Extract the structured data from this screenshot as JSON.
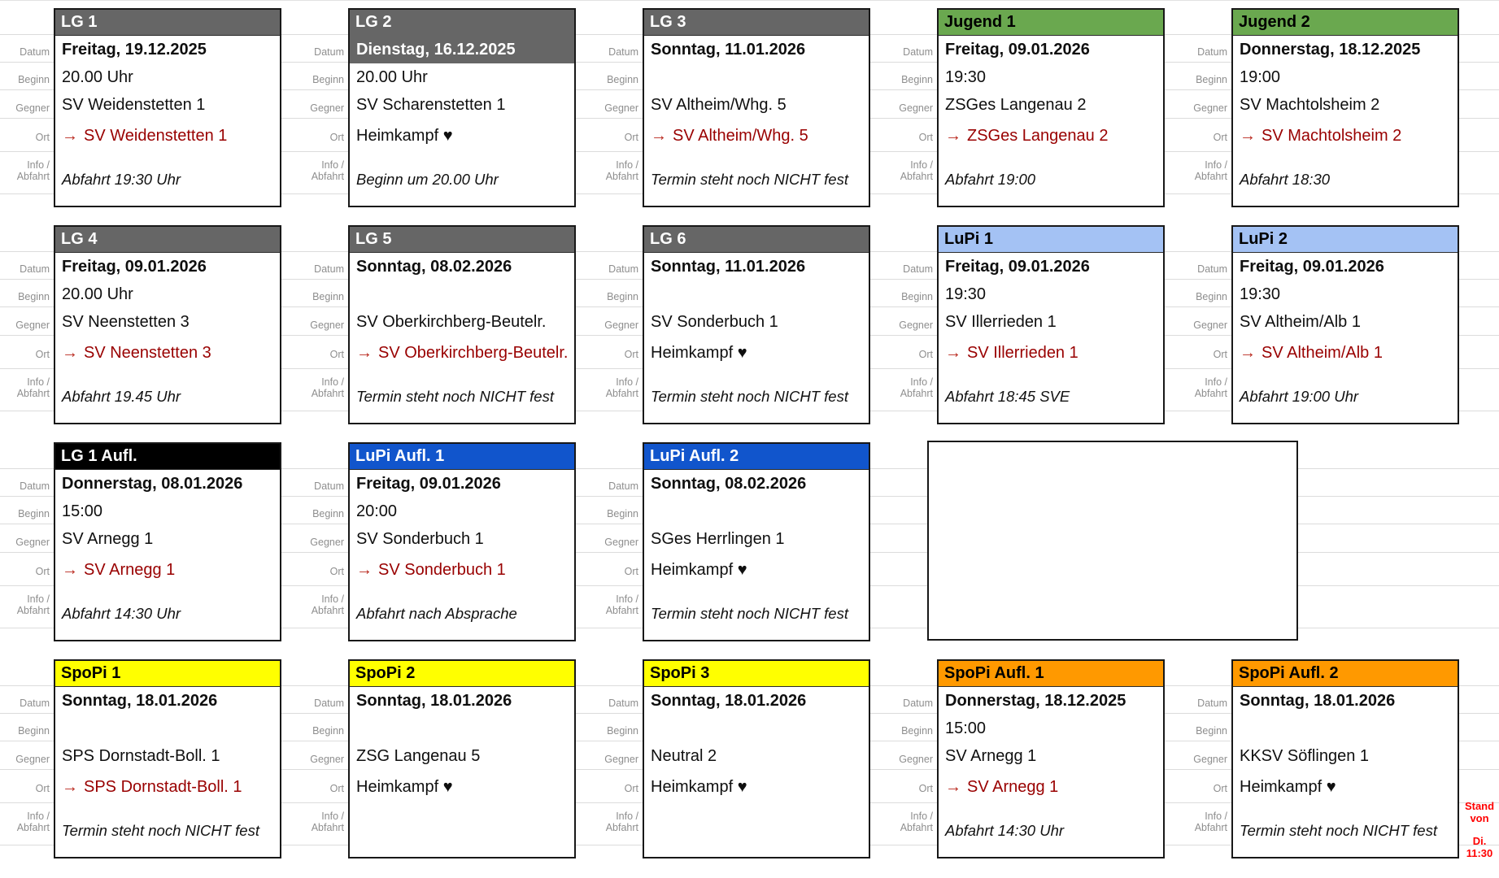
{
  "labels": {
    "datum": "Datum",
    "beginn": "Beginn",
    "gegner": "Gegner",
    "ort": "Ort",
    "info1": "Info /",
    "info2": "Abfahrt"
  },
  "glyphs": {
    "away_arrow": "→",
    "home_heart": "♥"
  },
  "colors": {
    "header_lg": "#666666",
    "header_jugend": "#6aa84f",
    "header_lupi": "#a4c2f4",
    "header_lupi_aufl": "#1155cc",
    "header_lg1_aufl": "#000000",
    "header_spopi": "#ffff00",
    "header_spopi_aufl": "#ff9900",
    "away_link": "#990000",
    "away_arrow": "#b9271c",
    "field_label": "#8e8e8e",
    "stand_note": "#ff0000",
    "date_highlight_bg": "#666666"
  },
  "cards": [
    {
      "title": "LG 1",
      "header_color": "#666666",
      "datum": "Freitag, 19.12.2025",
      "beginn": "20.00 Uhr",
      "gegner": "SV Weidenstetten 1",
      "ort": "SV Weidenstetten 1",
      "ort_type": "away",
      "info": "Abfahrt 19:30 Uhr"
    },
    {
      "title": "LG 2",
      "header_color": "#666666",
      "datum": "Dienstag, 16.12.2025",
      "date_highlighted": true,
      "beginn": "20.00 Uhr",
      "gegner": "SV Scharenstetten 1",
      "ort": "Heimkampf ♥",
      "ort_type": "home",
      "info": "Beginn um 20.00 Uhr"
    },
    {
      "title": "LG 3",
      "header_color": "#666666",
      "datum": "Sonntag, 11.01.2026",
      "beginn": "",
      "gegner": "SV Altheim/Whg. 5",
      "ort": "SV Altheim/Whg. 5",
      "ort_type": "away",
      "info": "Termin steht noch NICHT fest"
    },
    {
      "title": "Jugend 1",
      "header_color": "#6aa84f",
      "datum": "Freitag, 09.01.2026",
      "beginn": "19:30",
      "gegner": "ZSGes Langenau 2",
      "ort": "ZSGes Langenau 2",
      "ort_type": "away",
      "info": "Abfahrt 19:00"
    },
    {
      "title": "Jugend 2",
      "header_color": "#6aa84f",
      "datum": "Donnerstag, 18.12.2025",
      "beginn": "19:00",
      "gegner": "SV Machtolsheim 2",
      "ort": "SV Machtolsheim 2",
      "ort_type": "away",
      "info": "Abfahrt 18:30"
    },
    {
      "title": "LG 4",
      "header_color": "#666666",
      "datum": "Freitag, 09.01.2026",
      "beginn": "20.00 Uhr",
      "gegner": "SV Neenstetten 3",
      "ort": "SV Neenstetten 3",
      "ort_type": "away",
      "info": "Abfahrt 19.45 Uhr"
    },
    {
      "title": "LG 5",
      "header_color": "#666666",
      "datum": "Sonntag, 08.02.2026",
      "beginn": "",
      "gegner": "SV Oberkirchberg-Beutelr.",
      "ort": "SV Oberkirchberg-Beutelr.",
      "ort_type": "away",
      "info": "Termin steht noch NICHT fest"
    },
    {
      "title": "LG 6",
      "header_color": "#666666",
      "datum": "Sonntag, 11.01.2026",
      "beginn": "",
      "gegner": "SV Sonderbuch 1",
      "ort": "Heimkampf ♥",
      "ort_type": "home",
      "info": "Termin steht noch NICHT fest"
    },
    {
      "title": "LuPi 1",
      "header_color": "#a4c2f4",
      "datum": "Freitag, 09.01.2026",
      "beginn": "19:30",
      "gegner": "SV Illerrieden 1",
      "ort": "SV Illerrieden 1",
      "ort_type": "away",
      "info": "Abfahrt 18:45 SVE"
    },
    {
      "title": "LuPi 2",
      "header_color": "#a4c2f4",
      "datum": "Freitag, 09.01.2026",
      "beginn": "19:30",
      "gegner": "SV Altheim/Alb 1",
      "ort": "SV Altheim/Alb 1",
      "ort_type": "away",
      "info": "Abfahrt 19:00 Uhr"
    },
    {
      "title": "LG 1 Aufl.",
      "header_color": "#000000",
      "datum": "Donnerstag, 08.01.2026",
      "beginn": "15:00",
      "gegner": "SV Arnegg 1",
      "ort": "SV Arnegg 1",
      "ort_type": "away",
      "info": "Abfahrt 14:30 Uhr"
    },
    {
      "title": "LuPi Aufl. 1",
      "header_color": "#1155cc",
      "datum": "Freitag, 09.01.2026",
      "beginn": "20:00",
      "gegner": "SV Sonderbuch 1",
      "ort": "SV Sonderbuch 1",
      "ort_type": "away",
      "info": "Abfahrt nach Absprache"
    },
    {
      "title": "LuPi Aufl. 2",
      "header_color": "#1155cc",
      "datum": "Sonntag, 08.02.2026",
      "beginn": "",
      "gegner": "SGes Herrlingen 1",
      "ort": "Heimkampf ♥",
      "ort_type": "home",
      "info": "Termin steht noch NICHT fest"
    },
    {
      "title": "SpoPi 1",
      "header_color": "#ffff00",
      "datum": "Sonntag, 18.01.2026",
      "beginn": "",
      "gegner": "SPS Dornstadt-Boll. 1",
      "ort": "SPS Dornstadt-Boll. 1",
      "ort_type": "away",
      "info": "Termin steht noch NICHT fest"
    },
    {
      "title": "SpoPi 2",
      "header_color": "#ffff00",
      "datum": "Sonntag, 18.01.2026",
      "beginn": "",
      "gegner": "ZSG Langenau 5",
      "ort": "Heimkampf ♥",
      "ort_type": "home",
      "info": ""
    },
    {
      "title": "SpoPi 3",
      "header_color": "#ffff00",
      "datum": "Sonntag, 18.01.2026",
      "beginn": "",
      "gegner": "Neutral 2",
      "ort": "Heimkampf ♥",
      "ort_type": "home",
      "info": ""
    },
    {
      "title": "SpoPi Aufl. 1",
      "header_color": "#ff9900",
      "datum": "Donnerstag, 18.12.2025",
      "beginn": "15:00",
      "gegner": "SV Arnegg 1",
      "ort": "SV Arnegg 1",
      "ort_type": "away",
      "info": "Abfahrt 14:30 Uhr"
    },
    {
      "title": "SpoPi Aufl. 2",
      "header_color": "#ff9900",
      "datum": "Sonntag, 18.01.2026",
      "beginn": "",
      "gegner": "KKSV Söflingen 1",
      "ort": "Heimkampf ♥",
      "ort_type": "home",
      "info": "Termin steht noch NICHT fest"
    }
  ],
  "stand_note": {
    "l1": "Stand",
    "l2": "von",
    "l3": "Di.",
    "l4": "11:30"
  }
}
